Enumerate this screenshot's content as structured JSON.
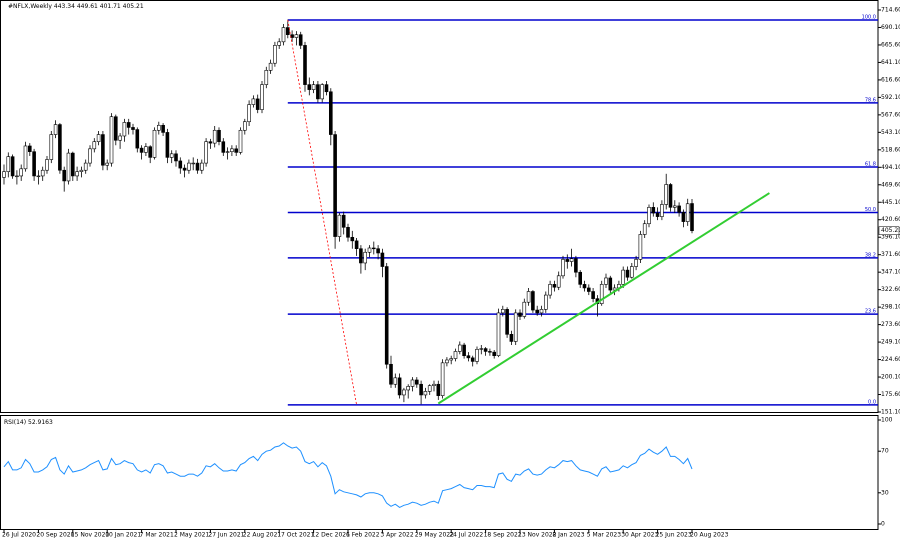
{
  "chart_data": {
    "type": "candlestick",
    "title": "#NFLX,Weekly",
    "categories": [
      "26 Jul 2020",
      null,
      null,
      null,
      null,
      null,
      null,
      null,
      "20 Sep 2020",
      null,
      null,
      null,
      null,
      null,
      null,
      null,
      "15 Nov 2020",
      null,
      null,
      null,
      null,
      null,
      null,
      null,
      "10 Jan 2021",
      null,
      null,
      null,
      null,
      null,
      null,
      null,
      "7 Mar 2021",
      null,
      null,
      null,
      null,
      null,
      null,
      null,
      "2 May 2021",
      null,
      null,
      null,
      null,
      null,
      null,
      null,
      "27 Jun 2021",
      null,
      null,
      null,
      null,
      null,
      null,
      null,
      "22 Aug 2021",
      null,
      null,
      null,
      null,
      null,
      null,
      null,
      "17 Oct 2021",
      null,
      null,
      null,
      null,
      null,
      null,
      null,
      "12 Dec 2021",
      null,
      null,
      null,
      null,
      null,
      null,
      null,
      "6 Feb 2022",
      null,
      null,
      null,
      null,
      null,
      null,
      null,
      "3 Apr 2022",
      null,
      null,
      null,
      null,
      null,
      null,
      null,
      "29 May 2022",
      null,
      null,
      null,
      null,
      null,
      null,
      null,
      "24 Jul 2022",
      null,
      null,
      null,
      null,
      null,
      null,
      null,
      "18 Sep 2022",
      null,
      null,
      null,
      null,
      null,
      null,
      null,
      "13 Nov 2022",
      null,
      null,
      null,
      null,
      null,
      null,
      null,
      "8 Jan 2023",
      null,
      null,
      null,
      null,
      null,
      null,
      null,
      "5 Mar 2023",
      null,
      null,
      null,
      null,
      null,
      null,
      null,
      "30 Apr 2023",
      null,
      null,
      null,
      null,
      null,
      null,
      null,
      "25 Jun 2023",
      null,
      null,
      null,
      null,
      null,
      null,
      null,
      "20 Aug 2023"
    ],
    "series": {
      "open": [
        480,
        488,
        509,
        482,
        482,
        492,
        524,
        516,
        482,
        482,
        490,
        505,
        540,
        554,
        490,
        475,
        514,
        482,
        488,
        490,
        500,
        520,
        530,
        540,
        497,
        500,
        565,
        532,
        538,
        557,
        550,
        547,
        521,
        515,
        523,
        508,
        546,
        553,
        543,
        508,
        513,
        503,
        493,
        490,
        500,
        500,
        490,
        500,
        530,
        528,
        546,
        530,
        515,
        516,
        520,
        515,
        546,
        558,
        582,
        590,
        575,
        610,
        630,
        640,
        665,
        670,
        690,
        680,
        676,
        680,
        665,
        610,
        603,
        610,
        590,
        610,
        600,
        540,
        397,
        427,
        410,
        396,
        391,
        380,
        360,
        375,
        381,
        380,
        374,
        355,
        218,
        190,
        199,
        175,
        182,
        187,
        196,
        190,
        175,
        180,
        188,
        190,
        174,
        220,
        224,
        226,
        236,
        245,
        230,
        227,
        222,
        239,
        240,
        236,
        235,
        230,
        290,
        295,
        260,
        250,
        290,
        285,
        305,
        320,
        294,
        290,
        295,
        315,
        330,
        326,
        342,
        365,
        362,
        366,
        347,
        330,
        325,
        320,
        310,
        303,
        330,
        339,
        322,
        325,
        330,
        350,
        340,
        355,
        365,
        400,
        415,
        438,
        430,
        425,
        442,
        470,
        438,
        440,
        431,
        418,
        443.34
      ],
      "high": [
        498,
        515,
        512,
        490,
        498,
        530,
        528,
        520,
        490,
        495,
        510,
        545,
        560,
        556,
        495,
        520,
        516,
        495,
        495,
        505,
        525,
        535,
        545,
        545,
        505,
        570,
        568,
        542,
        562,
        562,
        555,
        550,
        525,
        528,
        525,
        550,
        558,
        556,
        548,
        518,
        518,
        508,
        498,
        505,
        508,
        506,
        505,
        535,
        534,
        552,
        550,
        535,
        522,
        525,
        525,
        550,
        562,
        588,
        595,
        596,
        615,
        635,
        645,
        670,
        675,
        695,
        701,
        686,
        685,
        684,
        670,
        620,
        615,
        615,
        612,
        615,
        605,
        545,
        430,
        432,
        415,
        405,
        395,
        385,
        380,
        385,
        390,
        385,
        380,
        360,
        230,
        205,
        205,
        185,
        190,
        200,
        200,
        195,
        185,
        190,
        195,
        195,
        225,
        228,
        230,
        240,
        250,
        248,
        235,
        230,
        243,
        245,
        242,
        240,
        238,
        296,
        300,
        298,
        265,
        295,
        295,
        310,
        325,
        322,
        300,
        300,
        320,
        335,
        335,
        348,
        370,
        372,
        380,
        370,
        350,
        335,
        330,
        325,
        315,
        335,
        345,
        342,
        330,
        335,
        355,
        355,
        360,
        370,
        405,
        420,
        442,
        445,
        438,
        448,
        485,
        472,
        448,
        445,
        435,
        450,
        449.61
      ],
      "low": [
        470,
        480,
        478,
        470,
        475,
        488,
        510,
        475,
        470,
        475,
        485,
        500,
        535,
        485,
        460,
        470,
        475,
        475,
        480,
        485,
        495,
        515,
        525,
        490,
        490,
        495,
        525,
        520,
        530,
        540,
        540,
        515,
        505,
        510,
        500,
        505,
        540,
        538,
        500,
        500,
        495,
        485,
        480,
        485,
        490,
        485,
        485,
        495,
        520,
        522,
        525,
        510,
        505,
        510,
        510,
        512,
        540,
        552,
        578,
        570,
        570,
        605,
        625,
        635,
        660,
        665,
        675,
        670,
        665,
        660,
        600,
        595,
        598,
        585,
        585,
        595,
        525,
        380,
        390,
        400,
        390,
        380,
        370,
        345,
        350,
        368,
        372,
        365,
        340,
        212,
        185,
        185,
        170,
        165,
        170,
        180,
        185,
        162,
        170,
        175,
        180,
        168,
        170,
        215,
        218,
        222,
        232,
        226,
        222,
        215,
        218,
        232,
        230,
        230,
        226,
        228,
        285,
        255,
        245,
        245,
        280,
        282,
        300,
        290,
        286,
        285,
        290,
        310,
        320,
        322,
        338,
        352,
        355,
        340,
        325,
        320,
        315,
        305,
        285,
        300,
        325,
        318,
        315,
        320,
        325,
        335,
        338,
        350,
        360,
        395,
        410,
        425,
        420,
        420,
        435,
        432,
        430,
        425,
        410,
        412,
        401.71
      ],
      "close": [
        488,
        509,
        482,
        482,
        492,
        524,
        516,
        482,
        482,
        490,
        505,
        540,
        554,
        490,
        475,
        514,
        482,
        488,
        490,
        500,
        520,
        530,
        540,
        497,
        500,
        565,
        532,
        538,
        557,
        550,
        547,
        521,
        515,
        523,
        508,
        546,
        553,
        543,
        508,
        513,
        503,
        493,
        490,
        500,
        500,
        490,
        500,
        530,
        528,
        546,
        530,
        515,
        516,
        520,
        515,
        546,
        558,
        582,
        590,
        575,
        610,
        630,
        640,
        665,
        670,
        690,
        680,
        676,
        680,
        665,
        610,
        603,
        610,
        590,
        610,
        600,
        540,
        397,
        427,
        410,
        396,
        391,
        380,
        360,
        375,
        381,
        380,
        374,
        355,
        218,
        190,
        199,
        175,
        182,
        187,
        196,
        190,
        175,
        180,
        188,
        190,
        174,
        220,
        224,
        226,
        236,
        245,
        230,
        227,
        222,
        239,
        240,
        236,
        235,
        230,
        290,
        295,
        260,
        250,
        290,
        285,
        305,
        320,
        294,
        290,
        295,
        315,
        330,
        326,
        342,
        365,
        362,
        366,
        347,
        330,
        325,
        320,
        310,
        303,
        330,
        339,
        322,
        325,
        330,
        350,
        340,
        355,
        365,
        400,
        415,
        438,
        430,
        425,
        442,
        470,
        438,
        440,
        431,
        418,
        443,
        405.21
      ]
    },
    "ylim": [
      151.1,
      714.6
    ],
    "yticks": [
      {
        "value": 714.6,
        "label": "714.60"
      },
      {
        "value": 690.1,
        "label": "690.10"
      },
      {
        "value": 665.6,
        "label": "665.60"
      },
      {
        "value": 641.1,
        "label": "641.10"
      },
      {
        "value": 616.6,
        "label": "616.60"
      },
      {
        "value": 592.1,
        "label": "592.10"
      },
      {
        "value": 567.6,
        "label": "567.60"
      },
      {
        "value": 543.1,
        "label": "543.10"
      },
      {
        "value": 518.6,
        "label": "518.60"
      },
      {
        "value": 494.1,
        "label": "494.10"
      },
      {
        "value": 469.6,
        "label": "469.60"
      },
      {
        "value": 445.1,
        "label": "445.10"
      },
      {
        "value": 420.6,
        "label": "420.60"
      },
      {
        "value": 396.1,
        "label": "396.10"
      },
      {
        "value": 371.6,
        "label": "371.60"
      },
      {
        "value": 347.1,
        "label": "347.10"
      },
      {
        "value": 322.6,
        "label": "322.60"
      },
      {
        "value": 298.1,
        "label": "298.10"
      },
      {
        "value": 273.6,
        "label": "273.60"
      },
      {
        "value": 249.1,
        "label": "249.10"
      },
      {
        "value": 224.6,
        "label": "224.60"
      },
      {
        "value": 200.1,
        "label": "200.10"
      },
      {
        "value": 175.6,
        "label": "175.60"
      },
      {
        "value": 151.1,
        "label": "151.10"
      }
    ],
    "fib_color": "#0000cd",
    "fib_levels": [
      {
        "label": "100.0",
        "value": 700.6
      },
      {
        "label": "78.6",
        "value": 584.5
      },
      {
        "label": "61.8",
        "value": 494.5
      },
      {
        "label": "50.0",
        "value": 430.8
      },
      {
        "label": "38.2",
        "value": 367.1
      },
      {
        "label": "23.6",
        "value": 288.3
      },
      {
        "label": "0.0",
        "value": 161
      }
    ],
    "trendlines": [
      {
        "color": "#32cd32",
        "points": [
          [
            101,
            163
          ],
          [
            178,
            458
          ]
        ]
      },
      {
        "color": "#ff0000",
        "style": "dotted",
        "points": [
          [
            66,
            700.6
          ],
          [
            82,
            161
          ]
        ]
      }
    ],
    "rsi": {
      "name": "RSI(14)",
      "color": "#1e90ff",
      "ylim": [
        0,
        100
      ],
      "yticks": [
        100,
        70,
        30,
        0
      ],
      "values": [
        55,
        60,
        52,
        52,
        54,
        62,
        58,
        50,
        50,
        52,
        55,
        62,
        64,
        52,
        48,
        56,
        50,
        51,
        52,
        54,
        57,
        59,
        61,
        52,
        53,
        63,
        57,
        58,
        61,
        59,
        58,
        52,
        50,
        52,
        49,
        57,
        58,
        56,
        49,
        50,
        48,
        46,
        46,
        48,
        48,
        46,
        49,
        56,
        55,
        58,
        54,
        51,
        51,
        52,
        51,
        57,
        59,
        63,
        65,
        61,
        67,
        70,
        71,
        74,
        75,
        78,
        75,
        73,
        74,
        70,
        60,
        58,
        60,
        55,
        59,
        56,
        46,
        29,
        33,
        31,
        30,
        29,
        28,
        26,
        29,
        30,
        30,
        29,
        27,
        20,
        17,
        19,
        16,
        18,
        19,
        21,
        20,
        18,
        19,
        21,
        22,
        20,
        32,
        33,
        34,
        36,
        38,
        35,
        34,
        33,
        37,
        37,
        36,
        36,
        35,
        48,
        49,
        43,
        41,
        48,
        47,
        51,
        53,
        48,
        47,
        48,
        52,
        55,
        54,
        57,
        61,
        60,
        61,
        56,
        52,
        51,
        50,
        48,
        46,
        53,
        55,
        50,
        51,
        52,
        56,
        54,
        57,
        59,
        66,
        68,
        72,
        69,
        67,
        70,
        74,
        65,
        65,
        62,
        58,
        63,
        52.9163
      ]
    }
  }
}
